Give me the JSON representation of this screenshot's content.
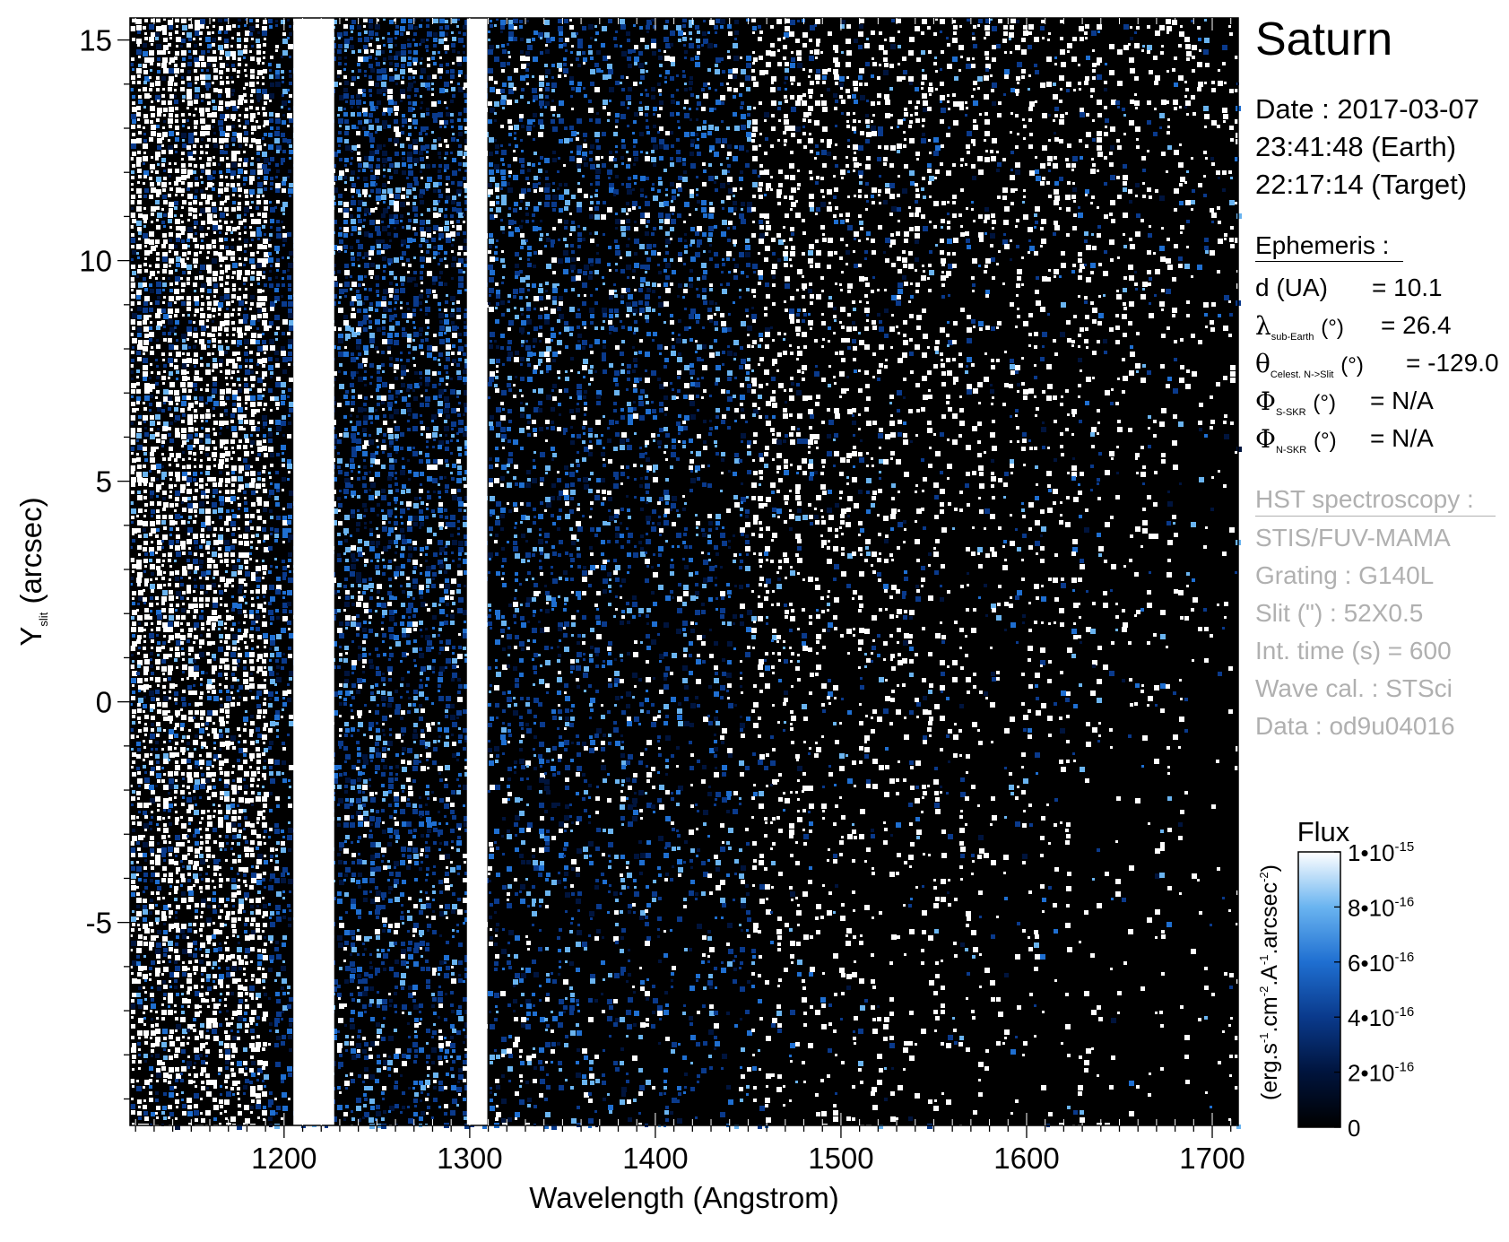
{
  "chart_data": {
    "type": "heatmap",
    "title": "Saturn",
    "xlabel": "Wavelength (Angstrom)",
    "ylabel": "Y slit (arcsec)",
    "ylabel_main": "Y",
    "ylabel_sub": "slit",
    "ylabel_tail": " (arcsec)",
    "xlim": [
      1117,
      1714
    ],
    "ylim": [
      -9.6,
      15.5
    ],
    "xticks": [
      1200,
      1300,
      1400,
      1500,
      1600,
      1700
    ],
    "yticks": [
      -5,
      0,
      5,
      10,
      15
    ],
    "xtick_labels": [
      "1200",
      "1300",
      "1400",
      "1500",
      "1600",
      "1700"
    ],
    "ytick_labels": [
      "-5",
      "0",
      "5",
      "10",
      "15"
    ],
    "emission_bands_angstrom": [
      1216,
      1304
    ],
    "background": "#000000",
    "colorbar": {
      "title": "Flux",
      "label": "(erg.s-1.cm-2.A-1.arcsec-2)",
      "range": [
        0,
        1e-15
      ],
      "ticks": [
        0,
        2e-16,
        4e-16,
        6e-16,
        8e-16,
        1e-15
      ],
      "tick_labels": [
        {
          "base": "0",
          "exp": ""
        },
        {
          "base": "2•10",
          "exp": "-16"
        },
        {
          "base": "4•10",
          "exp": "-16"
        },
        {
          "base": "6•10",
          "exp": "-16"
        },
        {
          "base": "8•10",
          "exp": "-16"
        },
        {
          "base": "1•10",
          "exp": "-15"
        }
      ],
      "colors": [
        "#000000",
        "#00143d",
        "#0a3a8c",
        "#1f6fd1",
        "#6ab4f0",
        "#ffffff"
      ]
    }
  },
  "info": {
    "title": "Saturn",
    "date_lines": [
      "Date : 2017-03-07",
      "23:41:48 (Earth)",
      "22:17:14 (Target)"
    ],
    "ephemeris_header": "Ephemeris :",
    "ephemeris": [
      {
        "sym": "",
        "label": "d (UA)",
        "sub": "",
        "unit": "",
        "value": "= 10.1"
      },
      {
        "sym": "λ",
        "label": "",
        "sub": "sub-Earth",
        "unit": "(°)",
        "value": "= 26.4"
      },
      {
        "sym": "θ",
        "label": "",
        "sub": "Celest. N->Slit",
        "unit": "(°)",
        "value": "= -129.0"
      },
      {
        "sym": "Φ",
        "label": "",
        "sub": "S-SKR",
        "unit": "(°)",
        "value": "= N/A"
      },
      {
        "sym": "Φ",
        "label": "",
        "sub": "N-SKR",
        "unit": "(°)",
        "value": "= N/A"
      }
    ],
    "hst_header": "HST spectroscopy :",
    "hst_lines": [
      "STIS/FUV-MAMA",
      "Grating : G140L",
      "Slit (\") : 52X0.5",
      "Int. time (s) = 600",
      "Wave cal. : STSci",
      "Data : od9u04016"
    ]
  }
}
